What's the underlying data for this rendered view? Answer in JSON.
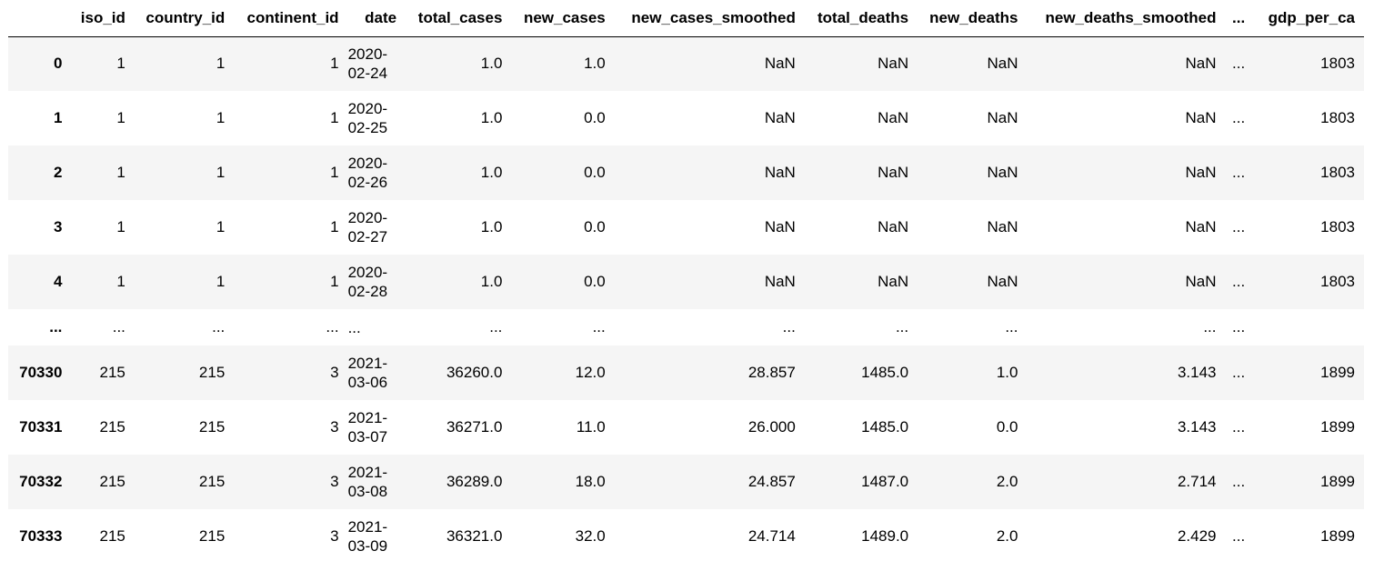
{
  "table": {
    "columns": [
      "",
      "iso_id",
      "country_id",
      "continent_id",
      "date",
      "total_cases",
      "new_cases",
      "new_cases_smoothed",
      "total_deaths",
      "new_deaths",
      "new_deaths_smoothed",
      "...",
      "gdp_per_ca"
    ],
    "rows": [
      {
        "index": "0",
        "iso_id": "1",
        "country_id": "1",
        "continent_id": "1",
        "date": [
          "2020-",
          "02-24"
        ],
        "total_cases": "1.0",
        "new_cases": "1.0",
        "new_cases_smoothed": "NaN",
        "total_deaths": "NaN",
        "new_deaths": "NaN",
        "new_deaths_smoothed": "NaN",
        "gap": "...",
        "gdp_per_ca": "1803"
      },
      {
        "index": "1",
        "iso_id": "1",
        "country_id": "1",
        "continent_id": "1",
        "date": [
          "2020-",
          "02-25"
        ],
        "total_cases": "1.0",
        "new_cases": "0.0",
        "new_cases_smoothed": "NaN",
        "total_deaths": "NaN",
        "new_deaths": "NaN",
        "new_deaths_smoothed": "NaN",
        "gap": "...",
        "gdp_per_ca": "1803"
      },
      {
        "index": "2",
        "iso_id": "1",
        "country_id": "1",
        "continent_id": "1",
        "date": [
          "2020-",
          "02-26"
        ],
        "total_cases": "1.0",
        "new_cases": "0.0",
        "new_cases_smoothed": "NaN",
        "total_deaths": "NaN",
        "new_deaths": "NaN",
        "new_deaths_smoothed": "NaN",
        "gap": "...",
        "gdp_per_ca": "1803"
      },
      {
        "index": "3",
        "iso_id": "1",
        "country_id": "1",
        "continent_id": "1",
        "date": [
          "2020-",
          "02-27"
        ],
        "total_cases": "1.0",
        "new_cases": "0.0",
        "new_cases_smoothed": "NaN",
        "total_deaths": "NaN",
        "new_deaths": "NaN",
        "new_deaths_smoothed": "NaN",
        "gap": "...",
        "gdp_per_ca": "1803"
      },
      {
        "index": "4",
        "iso_id": "1",
        "country_id": "1",
        "continent_id": "1",
        "date": [
          "2020-",
          "02-28"
        ],
        "total_cases": "1.0",
        "new_cases": "0.0",
        "new_cases_smoothed": "NaN",
        "total_deaths": "NaN",
        "new_deaths": "NaN",
        "new_deaths_smoothed": "NaN",
        "gap": "...",
        "gdp_per_ca": "1803"
      },
      {
        "index": "...",
        "iso_id": "...",
        "country_id": "...",
        "continent_id": "...",
        "date": [
          "...",
          ""
        ],
        "total_cases": "...",
        "new_cases": "...",
        "new_cases_smoothed": "...",
        "total_deaths": "...",
        "new_deaths": "...",
        "new_deaths_smoothed": "...",
        "gap": "...",
        "gdp_per_ca": ""
      },
      {
        "index": "70330",
        "iso_id": "215",
        "country_id": "215",
        "continent_id": "3",
        "date": [
          "2021-",
          "03-06"
        ],
        "total_cases": "36260.0",
        "new_cases": "12.0",
        "new_cases_smoothed": "28.857",
        "total_deaths": "1485.0",
        "new_deaths": "1.0",
        "new_deaths_smoothed": "3.143",
        "gap": "...",
        "gdp_per_ca": "1899"
      },
      {
        "index": "70331",
        "iso_id": "215",
        "country_id": "215",
        "continent_id": "3",
        "date": [
          "2021-",
          "03-07"
        ],
        "total_cases": "36271.0",
        "new_cases": "11.0",
        "new_cases_smoothed": "26.000",
        "total_deaths": "1485.0",
        "new_deaths": "0.0",
        "new_deaths_smoothed": "3.143",
        "gap": "...",
        "gdp_per_ca": "1899"
      },
      {
        "index": "70332",
        "iso_id": "215",
        "country_id": "215",
        "continent_id": "3",
        "date": [
          "2021-",
          "03-08"
        ],
        "total_cases": "36289.0",
        "new_cases": "18.0",
        "new_cases_smoothed": "24.857",
        "total_deaths": "1487.0",
        "new_deaths": "2.0",
        "new_deaths_smoothed": "2.714",
        "gap": "...",
        "gdp_per_ca": "1899"
      },
      {
        "index": "70333",
        "iso_id": "215",
        "country_id": "215",
        "continent_id": "3",
        "date": [
          "2021-",
          "03-09"
        ],
        "total_cases": "36321.0",
        "new_cases": "32.0",
        "new_cases_smoothed": "24.714",
        "total_deaths": "1489.0",
        "new_deaths": "2.0",
        "new_deaths_smoothed": "2.429",
        "gap": "...",
        "gdp_per_ca": "1899"
      }
    ]
  },
  "colors": {
    "stripe": "#f5f5f5",
    "header_rule": "#000000",
    "text": "#000000"
  }
}
